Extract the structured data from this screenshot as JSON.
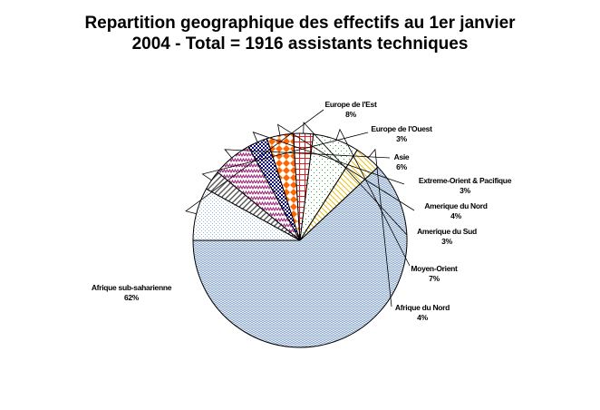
{
  "chart_data": {
    "type": "pie",
    "title_lines": [
      "Repartition geographique des effectifs au 1er janvier",
      "2004 - Total = 1916 assistants techniques"
    ],
    "slices": [
      {
        "label": "Europe de l'Est",
        "pct_label": "8%",
        "value": 8,
        "color": "#8fb8e0",
        "pattern": "dots"
      },
      {
        "label": "Europe de l'Ouest",
        "pct_label": "3%",
        "value": 3,
        "color": "#555555",
        "pattern": "diag"
      },
      {
        "label": "Asie",
        "pct_label": "6%",
        "value": 6,
        "color": "#a0207a",
        "pattern": "zigzag"
      },
      {
        "label": "Extreme-Orient & Pacifique",
        "pct_label": "3%",
        "value": 3,
        "color": "#000080",
        "pattern": "checker"
      },
      {
        "label": "Amerique du Nord",
        "pct_label": "4%",
        "value": 4,
        "color": "#ff6600",
        "pattern": "diamond"
      },
      {
        "label": "Amerique du Sud",
        "pct_label": "3%",
        "value": 3,
        "color": "#e02020",
        "pattern": "grid"
      },
      {
        "label": "Moyen-Orient",
        "pct_label": "7%",
        "value": 7,
        "color": "#40a040",
        "pattern": "sparse"
      },
      {
        "label": "Afrique du Nord",
        "pct_label": "4%",
        "value": 4,
        "color": "#e8c020",
        "pattern": "diag-rev"
      },
      {
        "label": "Afrique sub-saharienne",
        "pct_label": "62%",
        "value": 62,
        "color": "#6a90c0",
        "pattern": "weave"
      }
    ]
  }
}
